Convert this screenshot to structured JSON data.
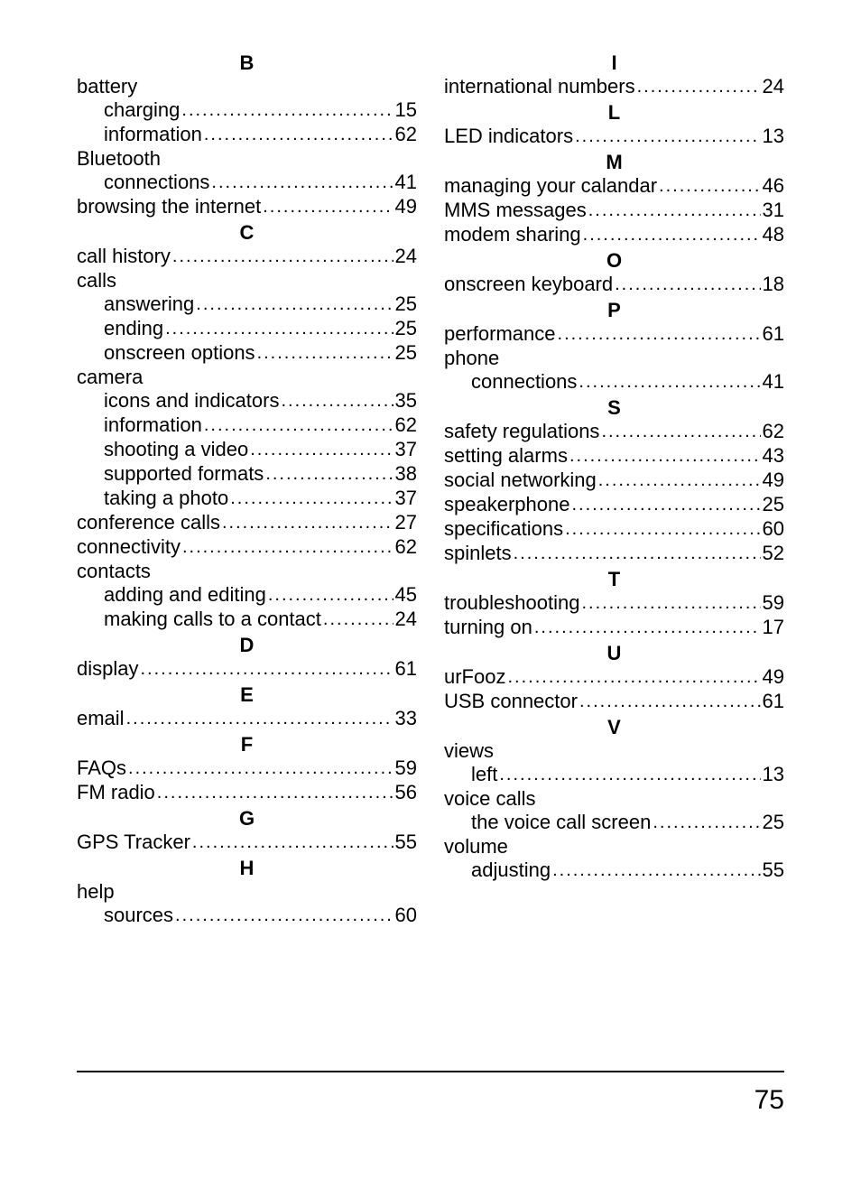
{
  "page_number": "75",
  "columns": [
    [
      {
        "type": "letter",
        "text": "B"
      },
      {
        "type": "head",
        "text": "battery"
      },
      {
        "type": "sub",
        "text": "charging",
        "page": "15"
      },
      {
        "type": "sub",
        "text": "information",
        "page": "62"
      },
      {
        "type": "head",
        "text": "Bluetooth"
      },
      {
        "type": "sub",
        "text": "connections",
        "page": "41"
      },
      {
        "type": "entry",
        "text": "browsing the internet",
        "page": "49"
      },
      {
        "type": "letter",
        "text": "C"
      },
      {
        "type": "entry",
        "text": "call history",
        "page": "24"
      },
      {
        "type": "head",
        "text": "calls"
      },
      {
        "type": "sub",
        "text": "answering",
        "page": "25"
      },
      {
        "type": "sub",
        "text": "ending",
        "page": "25"
      },
      {
        "type": "sub",
        "text": "onscreen options",
        "page": "25"
      },
      {
        "type": "head",
        "text": "camera"
      },
      {
        "type": "sub",
        "text": "icons and indicators",
        "page": "35"
      },
      {
        "type": "sub",
        "text": "information",
        "page": "62"
      },
      {
        "type": "sub",
        "text": "shooting a video",
        "page": "37"
      },
      {
        "type": "sub",
        "text": "supported formats",
        "page": "38"
      },
      {
        "type": "sub",
        "text": "taking a photo",
        "page": "37"
      },
      {
        "type": "entry",
        "text": "conference calls",
        "page": "27"
      },
      {
        "type": "entry",
        "text": "connectivity",
        "page": "62"
      },
      {
        "type": "head",
        "text": "contacts"
      },
      {
        "type": "sub",
        "text": "adding and editing",
        "page": "45"
      },
      {
        "type": "sub",
        "text": "making calls to a contact",
        "page": "24"
      },
      {
        "type": "letter",
        "text": "D"
      },
      {
        "type": "entry",
        "text": "display",
        "page": "61"
      },
      {
        "type": "letter",
        "text": "E"
      },
      {
        "type": "entry",
        "text": "email",
        "page": "33"
      },
      {
        "type": "letter",
        "text": "F"
      },
      {
        "type": "entry",
        "text": "FAQs",
        "page": "59"
      },
      {
        "type": "entry",
        "text": "FM radio",
        "page": "56"
      },
      {
        "type": "letter",
        "text": "G"
      },
      {
        "type": "entry",
        "text": "GPS Tracker",
        "page": "55"
      },
      {
        "type": "letter",
        "text": "H"
      },
      {
        "type": "head",
        "text": "help"
      },
      {
        "type": "sub",
        "text": "sources",
        "page": "60"
      }
    ],
    [
      {
        "type": "letter",
        "text": "I"
      },
      {
        "type": "entry",
        "text": "international numbers",
        "page": "24"
      },
      {
        "type": "letter",
        "text": "L"
      },
      {
        "type": "entry",
        "text": "LED indicators",
        "page": "13"
      },
      {
        "type": "letter",
        "text": "M"
      },
      {
        "type": "entry",
        "text": "managing your calandar",
        "page": "46"
      },
      {
        "type": "entry",
        "text": "MMS messages",
        "page": "31"
      },
      {
        "type": "entry",
        "text": "modem sharing",
        "page": "48"
      },
      {
        "type": "letter",
        "text": "O"
      },
      {
        "type": "entry",
        "text": "onscreen keyboard",
        "page": "18"
      },
      {
        "type": "letter",
        "text": "P"
      },
      {
        "type": "entry",
        "text": "performance",
        "page": "61"
      },
      {
        "type": "head",
        "text": "phone"
      },
      {
        "type": "sub",
        "text": "connections",
        "page": "41"
      },
      {
        "type": "letter",
        "text": "S"
      },
      {
        "type": "entry",
        "text": "safety regulations",
        "page": "62"
      },
      {
        "type": "entry",
        "text": "setting alarms",
        "page": "43"
      },
      {
        "type": "entry",
        "text": "social networking",
        "page": "49"
      },
      {
        "type": "entry",
        "text": "speakerphone",
        "page": "25"
      },
      {
        "type": "entry",
        "text": "specifications",
        "page": "60"
      },
      {
        "type": "entry",
        "text": "spinlets",
        "page": "52"
      },
      {
        "type": "letter",
        "text": "T"
      },
      {
        "type": "entry",
        "text": "troubleshooting",
        "page": "59"
      },
      {
        "type": "entry",
        "text": "turning on",
        "page": "17"
      },
      {
        "type": "letter",
        "text": "U"
      },
      {
        "type": "entry",
        "text": "urFooz",
        "page": "49"
      },
      {
        "type": "entry",
        "text": "USB connector",
        "page": "61"
      },
      {
        "type": "letter",
        "text": "V"
      },
      {
        "type": "head",
        "text": "views"
      },
      {
        "type": "sub",
        "text": "left",
        "page": "13"
      },
      {
        "type": "head",
        "text": "voice calls"
      },
      {
        "type": "sub",
        "text": "the voice call screen",
        "page": "25"
      },
      {
        "type": "head",
        "text": "volume"
      },
      {
        "type": "sub",
        "text": "adjusting",
        "page": "55"
      }
    ]
  ]
}
